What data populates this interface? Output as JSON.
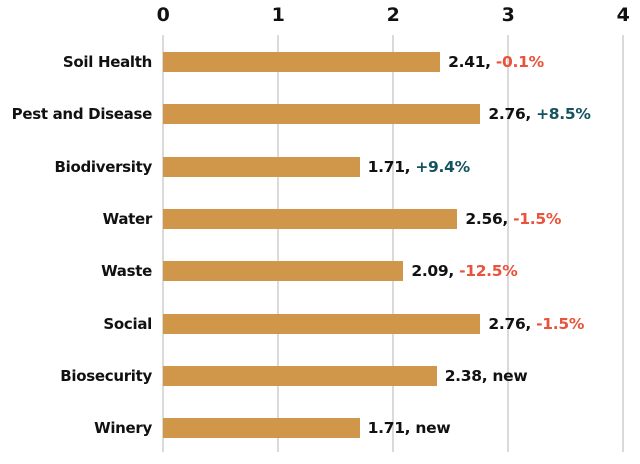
{
  "chart_data": {
    "type": "bar",
    "orientation": "horizontal",
    "categories": [
      "Soil Health",
      "Pest and Disease",
      "Biodiversity",
      "Water",
      "Waste",
      "Social",
      "Biosecurity",
      "Winery"
    ],
    "values": [
      2.41,
      2.76,
      1.71,
      2.56,
      2.09,
      2.76,
      2.38,
      1.71
    ],
    "value_labels": [
      "2.41",
      "2.76",
      "1.71",
      "2.56",
      "2.09",
      "2.76",
      "2.38",
      "1.71"
    ],
    "changes": [
      "-0.1%",
      "+8.5%",
      "+9.4%",
      "-1.5%",
      "-12.5%",
      "-1.5%",
      "new",
      "new"
    ],
    "change_types": [
      "negative",
      "positive",
      "positive",
      "negative",
      "negative",
      "negative",
      "new",
      "new"
    ],
    "title": "",
    "xlabel": "",
    "ylabel": "",
    "xlim": [
      0,
      4
    ],
    "x_ticks": [
      "0",
      "1",
      "2",
      "3",
      "4"
    ],
    "x_axis_position": "top",
    "grid": true,
    "legend": false,
    "colors": {
      "bar": "#D09649",
      "positive": "#14525F",
      "negative": "#E8533C",
      "new": "#111111",
      "gridline": "#DADADA",
      "text": "#111111"
    }
  }
}
